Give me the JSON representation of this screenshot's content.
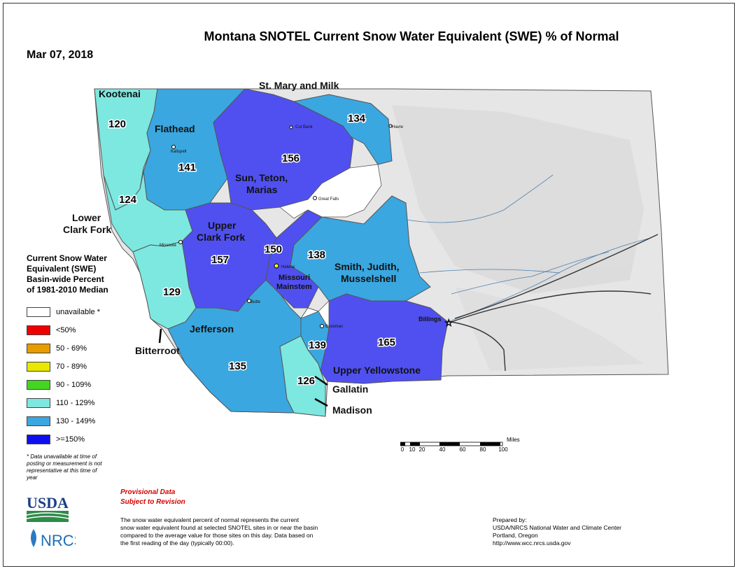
{
  "title": "Montana SNOTEL Current Snow Water Equivalent (SWE) % of Normal",
  "date": "Mar 07, 2018",
  "basins": [
    {
      "id": "kootenai",
      "name": "Kootenai",
      "value": "120",
      "color": "#7de8e0"
    },
    {
      "id": "flathead",
      "name": "Flathead",
      "value": "141",
      "color": "#3aa7e0"
    },
    {
      "id": "st-mary-milk",
      "name": "St. Mary and Milk",
      "value": "134",
      "color": "#3aa7e0"
    },
    {
      "id": "sun-teton-marias",
      "name": "Sun, Teton, Marias",
      "value": "156",
      "color": "#5050f0"
    },
    {
      "id": "lower-clark-fork",
      "name": "Lower Clark Fork",
      "value": "124",
      "color": "#7de8e0"
    },
    {
      "id": "upper-clark-fork",
      "name": "Upper Clark Fork",
      "value": "157",
      "color": "#5050f0"
    },
    {
      "id": "missouri-mainstem",
      "name": "Missouri Mainstem",
      "value": "150",
      "color": "#5050f0"
    },
    {
      "id": "smith-judith-musselshell",
      "name": "Smith, Judith, Musselshell",
      "value": "138",
      "color": "#3aa7e0"
    },
    {
      "id": "bitterroot",
      "name": "Bitterroot",
      "value": "129",
      "color": "#7de8e0"
    },
    {
      "id": "jefferson",
      "name": "Jefferson",
      "value": "135",
      "color": "#3aa7e0"
    },
    {
      "id": "madison",
      "name": "Madison",
      "value": "126",
      "color": "#7de8e0"
    },
    {
      "id": "gallatin",
      "name": "Gallatin",
      "value": "139",
      "color": "#3aa7e0"
    },
    {
      "id": "upper-yellowstone",
      "name": "Upper Yellowstone",
      "value": "165",
      "color": "#5050f0"
    }
  ],
  "labels": {
    "kootenai": "Kootenai",
    "flathead": "Flathead",
    "st_mary": "St. Mary and Milk",
    "sun1": "Sun, Teton,",
    "sun2": "Marias",
    "lcf1": "Lower",
    "lcf2": "Clark Fork",
    "ucf1": "Upper",
    "ucf2": "Clark Fork",
    "mm1": "Missouri",
    "mm2": "Mainstem",
    "sjm1": "Smith, Judith,",
    "sjm2": "Musselshell",
    "bitterroot": "Bitterroot",
    "jefferson": "Jefferson",
    "madison": "Madison",
    "gallatin": "Gallatin",
    "uy": "Upper Yellowstone"
  },
  "values": {
    "kootenai": "120",
    "flathead": "141",
    "st_mary": "134",
    "sun": "156",
    "lcf": "124",
    "ucf": "157",
    "mm": "150",
    "sjm": "138",
    "bitterroot": "129",
    "jefferson": "135",
    "madison": "126",
    "gallatin": "139",
    "uy": "165"
  },
  "cities": {
    "kalispell": "Kalispell",
    "missoula": "Missoula",
    "great_falls": "Great Falls",
    "helena": "Helena",
    "butte": "Butte",
    "bozeman": "Bozeman",
    "billings": "Billings",
    "havre": "Havre",
    "cut_bank": "Cut Bank"
  },
  "legend": {
    "title": [
      "Current Snow Water",
      "Equivalent (SWE)",
      "Basin-wide Percent",
      "of 1981-2010 Median"
    ],
    "items": [
      {
        "label": "unavailable *",
        "color": "#ffffff"
      },
      {
        "label": "<50%",
        "color": "#ee0000"
      },
      {
        "label": "50 - 69%",
        "color": "#e89c00"
      },
      {
        "label": "70 - 89%",
        "color": "#e8e800"
      },
      {
        "label": "90 - 109%",
        "color": "#44d422"
      },
      {
        "label": "110 - 129%",
        "color": "#7de8e0"
      },
      {
        "label": "130 - 149%",
        "color": "#3aa7e0"
      },
      {
        "label": ">=150%",
        "color": "#1010ee"
      }
    ]
  },
  "note": "* Data unavailable at time of posting or measurement is not representative at this time of year",
  "provisional": [
    "Provisional Data",
    "Subject to Revision"
  ],
  "description": [
    "The snow water equivalent percent of normal represents the current",
    "snow water equivalent found at selected SNOTEL sites in or near the basin",
    "compared to the average value for those sites on this day. Data based on",
    "the first reading of the day (typically 00:00)."
  ],
  "prepared": [
    "Prepared by:",
    "USDA/NRCS National Water and Climate Center",
    "Portland, Oregon",
    "http://www.wcc.nrcs.usda.gov"
  ],
  "scale": {
    "unit": "Miles",
    "ticks": [
      "0",
      "10",
      "20",
      "40",
      "60",
      "80",
      "100"
    ]
  },
  "logos": {
    "usda": "USDA",
    "nrcs": "NRCS"
  }
}
